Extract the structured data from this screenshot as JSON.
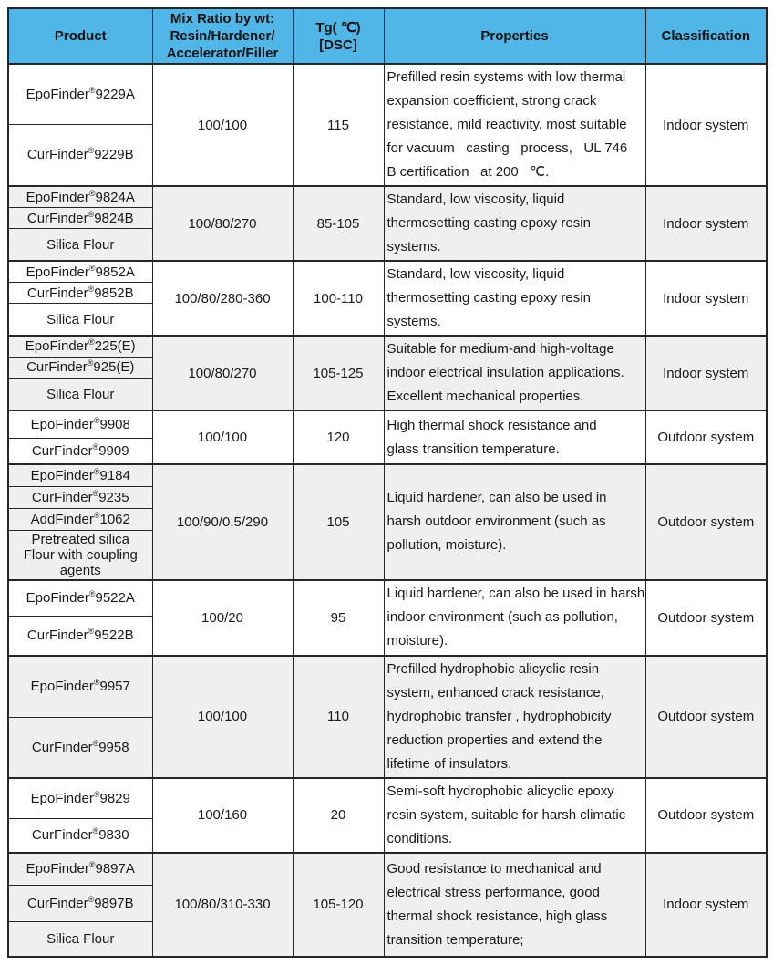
{
  "colors": {
    "header_bg": "#50B5E7",
    "header_text": "#111111",
    "shaded_row_bg": "#EFEFEF",
    "row_bg": "#FFFFFF",
    "border": "#262626"
  },
  "table": {
    "columns": [
      {
        "label": "Product"
      },
      {
        "label": "Mix Ratio by wt:\nResin/Hardener/\nAccelerator/Filler"
      },
      {
        "label": "Tg( ℃)\n[DSC]"
      },
      {
        "label": "Properties"
      },
      {
        "label": "Classification"
      }
    ],
    "groups": [
      {
        "products": [
          "EpoFinder®9229A",
          "CurFinder®9229B"
        ],
        "mix_ratio": "100/100",
        "tg": "115",
        "properties_lines": [
          "Prefilled resin systems with low thermal",
          "expansion coefficient, strong crack",
          "resistance, mild reactivity, most suitable",
          "for vacuum   casting   process,   UL 746",
          "B certification   at 200   ℃."
        ],
        "classification": "Indoor system",
        "shaded": false
      },
      {
        "products": [
          "EpoFinder®9824A",
          "CurFinder®9824B",
          "Silica Flour"
        ],
        "mix_ratio": "100/80/270",
        "tg": "85-105",
        "properties_lines": [
          "Standard, low viscosity, liquid",
          "thermosetting casting epoxy resin",
          "systems."
        ],
        "classification": "Indoor system",
        "shaded": true
      },
      {
        "products": [
          "EpoFinder®9852A",
          "CurFinder®9852B",
          "Silica Flour"
        ],
        "mix_ratio": "100/80/280-360",
        "tg": "100-110",
        "properties_lines": [
          "Standard, low viscosity, liquid",
          "thermosetting casting epoxy resin",
          "systems."
        ],
        "classification": "Indoor system",
        "shaded": false
      },
      {
        "products": [
          "EpoFinder®225(E)",
          "CurFinder®925(E)",
          "Silica Flour"
        ],
        "mix_ratio": "100/80/270",
        "tg": "105-125",
        "properties_lines": [
          "Suitable for medium-and high-voltage",
          "indoor electrical insulation applications.",
          "Excellent mechanical properties."
        ],
        "classification": "Indoor system",
        "shaded": true
      },
      {
        "products": [
          "EpoFinder®9908",
          "CurFinder®9909"
        ],
        "mix_ratio": "100/100",
        "tg": "120",
        "properties_lines": [
          "High thermal shock resistance and",
          "glass transition temperature."
        ],
        "classification": "Outdoor system",
        "shaded": false
      },
      {
        "products": [
          "EpoFinder®9184",
          "CurFinder®9235",
          "AddFinder®1062",
          "Pretreated silica\nFlour with coupling\nagents"
        ],
        "mix_ratio": "100/90/0.5/290",
        "tg": "105",
        "properties_lines": [
          "Liquid hardener, can also be used in",
          "harsh outdoor environment (such as",
          "pollution, moisture)."
        ],
        "classification": "Outdoor system",
        "shaded": true
      },
      {
        "products": [
          "EpoFinder®9522A",
          "CurFinder®9522B"
        ],
        "mix_ratio": "100/20",
        "tg": "95",
        "properties_lines": [
          "Liquid hardener, can also be used in harsh",
          "indoor environment (such as pollution,",
          "moisture)."
        ],
        "classification": "Outdoor system",
        "shaded": false
      },
      {
        "products": [
          "EpoFinder®9957",
          "CurFinder®9958"
        ],
        "mix_ratio": "100/100",
        "tg": "110",
        "properties_lines": [
          "Prefilled hydrophobic alicyclic resin",
          "system, enhanced crack resistance,",
          "hydrophobic transfer , hydrophobicity",
          "reduction properties and extend the",
          "lifetime of insulators."
        ],
        "classification": "Outdoor system",
        "shaded": true
      },
      {
        "products": [
          "EpoFinder®9829",
          "CurFinder®9830"
        ],
        "mix_ratio": "100/160",
        "tg": "20",
        "properties_lines": [
          "Semi-soft hydrophobic alicyclic epoxy",
          "resin system, suitable for harsh climatic",
          "conditions."
        ],
        "classification": "Outdoor system",
        "shaded": false
      },
      {
        "products": [
          "EpoFinder®9897A",
          "CurFinder®9897B",
          "Silica Flour"
        ],
        "mix_ratio": "100/80/310-330",
        "tg": "105-120",
        "properties_lines": [
          "Good resistance to mechanical and",
          "electrical stress performance, good",
          "thermal shock resistance, high glass",
          "transition temperature;"
        ],
        "classification": "Indoor system",
        "shaded": true
      }
    ]
  }
}
